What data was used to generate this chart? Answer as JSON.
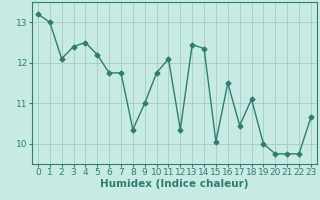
{
  "x": [
    0,
    1,
    2,
    3,
    4,
    5,
    6,
    7,
    8,
    9,
    10,
    11,
    12,
    13,
    14,
    15,
    16,
    17,
    18,
    19,
    20,
    21,
    22,
    23
  ],
  "y": [
    13.2,
    13.0,
    12.1,
    12.4,
    12.5,
    12.2,
    11.75,
    11.75,
    10.35,
    11.0,
    11.75,
    12.1,
    10.35,
    12.45,
    12.35,
    10.05,
    11.5,
    10.45,
    11.1,
    10.0,
    9.75,
    9.75,
    9.75,
    10.65
  ],
  "line_color": "#2e7d6e",
  "marker": "D",
  "marker_size": 2.5,
  "bg_color": "#c8eae4",
  "grid_color": "#a8cfc8",
  "xlabel": "Humidex (Indice chaleur)",
  "xlabel_fontsize": 7.5,
  "ylim": [
    9.5,
    13.5
  ],
  "xlim": [
    -0.5,
    23.5
  ],
  "yticks": [
    10,
    11,
    12,
    13
  ],
  "xticks": [
    0,
    1,
    2,
    3,
    4,
    5,
    6,
    7,
    8,
    9,
    10,
    11,
    12,
    13,
    14,
    15,
    16,
    17,
    18,
    19,
    20,
    21,
    22,
    23
  ],
  "tick_fontsize": 6.5,
  "line_width": 1.0
}
